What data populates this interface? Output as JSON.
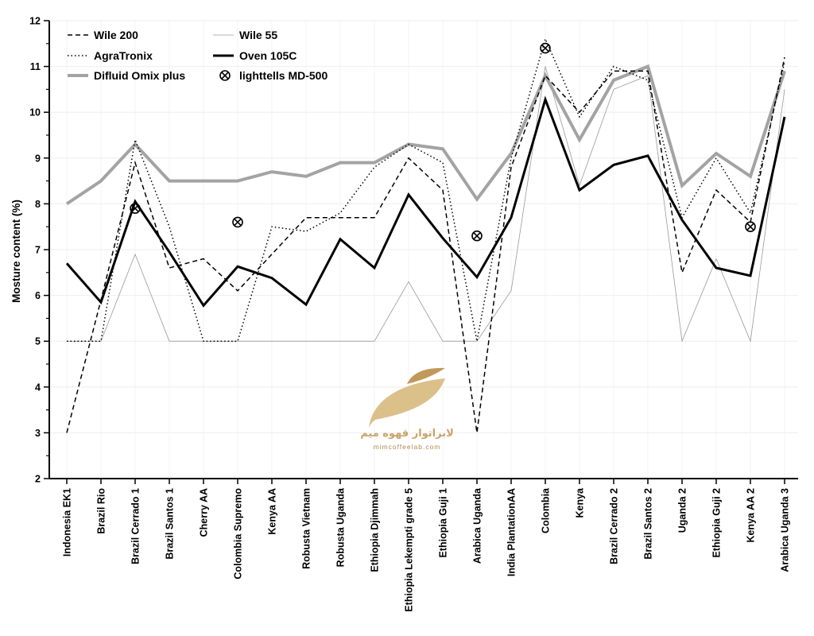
{
  "chart_data": {
    "type": "line",
    "title": "",
    "xlabel": "",
    "ylabel": "Mosture content (%)",
    "ylim": [
      2,
      12
    ],
    "yticks": [
      2,
      3,
      4,
      5,
      6,
      7,
      8,
      9,
      10,
      11,
      12
    ],
    "grid": true,
    "legend_position": "top-left",
    "categories": [
      "Indonesia EK1",
      "Brazil Rio",
      "Brazil Cerrado 1",
      "Brazil Santos 1",
      "Cherry AA",
      "Colombia Supremo",
      "Kenya AA",
      "Robusta Vietnam",
      "Robusta Uganda",
      "Ethiopia Djimmah",
      "Ethiopia Lekempti grade 5",
      "Ethiopia Guji 1",
      "Arabica Uganda",
      "India PlantationAA",
      "Colombia",
      "Kenya",
      "Brazil Cerrado 2",
      "Brazil Santos 2",
      "Uganda 2",
      "Ethiopia Guji 2",
      "Kenya AA 2",
      "Arabica Uganda 3"
    ],
    "series": [
      {
        "name": "Wile 200",
        "style": "dashed",
        "color": "#000000",
        "values": [
          3.0,
          5.9,
          8.9,
          6.6,
          6.8,
          6.1,
          6.9,
          7.7,
          7.7,
          7.7,
          9.0,
          8.3,
          3.0,
          8.8,
          10.8,
          10.0,
          10.9,
          10.9,
          6.5,
          8.3,
          7.6,
          11.2
        ]
      },
      {
        "name": "AgraTronix",
        "style": "dotted",
        "color": "#000000",
        "values": [
          5.0,
          5.0,
          9.4,
          7.5,
          5.0,
          5.0,
          7.5,
          7.4,
          7.8,
          8.8,
          9.3,
          8.9,
          5.0,
          9.0,
          11.6,
          9.9,
          11.0,
          10.7,
          7.7,
          9.0,
          7.8,
          11.1
        ]
      },
      {
        "name": "Difluid Omix plus",
        "style": "thick",
        "color": "#a3a3a3",
        "values": [
          8.0,
          8.5,
          9.3,
          8.5,
          8.5,
          8.5,
          8.7,
          8.6,
          8.9,
          8.9,
          9.3,
          9.2,
          8.1,
          9.1,
          10.8,
          9.4,
          10.7,
          11.0,
          8.4,
          9.1,
          8.6,
          10.9
        ]
      },
      {
        "name": "Wile 55",
        "style": "thin",
        "color": "#9a9a9a",
        "values": [
          5.0,
          5.0,
          6.9,
          5.0,
          5.0,
          5.0,
          5.0,
          5.0,
          5.0,
          5.0,
          6.3,
          5.0,
          5.0,
          6.1,
          11.0,
          8.4,
          10.5,
          10.8,
          5.0,
          6.8,
          5.0,
          10.5
        ]
      },
      {
        "name": "Oven 105C",
        "style": "bold",
        "color": "#000000",
        "values": [
          6.7,
          5.85,
          8.05,
          6.95,
          5.78,
          6.63,
          6.38,
          5.8,
          7.23,
          6.6,
          8.2,
          7.25,
          6.4,
          7.7,
          10.28,
          8.3,
          8.85,
          9.05,
          7.65,
          6.6,
          6.43,
          9.9
        ]
      },
      {
        "name": "lighttells MD-500",
        "style": "marker",
        "color": "#000000",
        "values": [
          null,
          null,
          7.9,
          null,
          null,
          7.6,
          null,
          null,
          null,
          null,
          null,
          null,
          7.3,
          null,
          11.4,
          null,
          null,
          null,
          null,
          null,
          7.5,
          null
        ]
      }
    ]
  },
  "watermark": {
    "text_ar": "لابراتوار قهوه میم",
    "url": "mimcoffeelab.com",
    "colors": {
      "light": "#dcc08a",
      "dark": "#c19a5b"
    }
  }
}
